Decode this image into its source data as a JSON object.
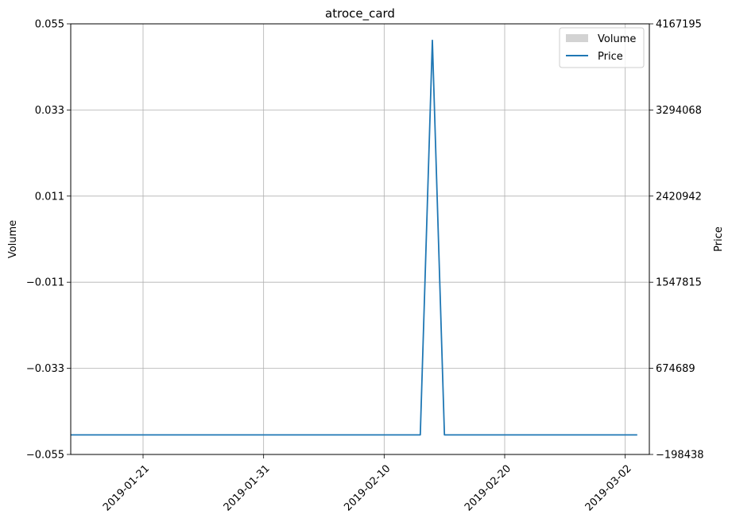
{
  "chart_data": {
    "type": "line",
    "title": "atroce_card",
    "xlabel": "",
    "ylabel_left": "Volume",
    "ylabel_right": "Price",
    "x_ticks": [
      "2019-01-21",
      "2019-01-31",
      "2019-02-10",
      "2019-02-20",
      "2019-03-02"
    ],
    "x_range": [
      "2019-01-15",
      "2019-03-04"
    ],
    "left_axis": {
      "ylim": [
        -0.055,
        0.055
      ],
      "ticks": [
        "0.055",
        "0.033",
        "0.011",
        "−0.011",
        "−0.033",
        "−0.055"
      ],
      "tick_values": [
        0.055,
        0.033,
        0.011,
        -0.011,
        -0.033,
        -0.055
      ]
    },
    "right_axis": {
      "ylim": [
        -198438,
        4167195
      ],
      "ticks": [
        "4167195",
        "3294068",
        "2420942",
        "1547815",
        "674689",
        "−198438"
      ],
      "tick_values": [
        4167195,
        3294068,
        2420942,
        1547815,
        674689,
        -198438
      ]
    },
    "grid": true,
    "legend": {
      "position": "top-right",
      "entries": [
        "Volume",
        "Price"
      ]
    },
    "series": [
      {
        "name": "Price",
        "axis": "right",
        "color": "#1f77b4",
        "points": [
          [
            "2019-01-15",
            0
          ],
          [
            "2019-02-13",
            0
          ],
          [
            "2019-02-14",
            4000000
          ],
          [
            "2019-02-15",
            0
          ],
          [
            "2019-03-03",
            0
          ]
        ]
      },
      {
        "name": "Volume",
        "axis": "left",
        "color": "#d3d3d3",
        "points": []
      }
    ]
  }
}
